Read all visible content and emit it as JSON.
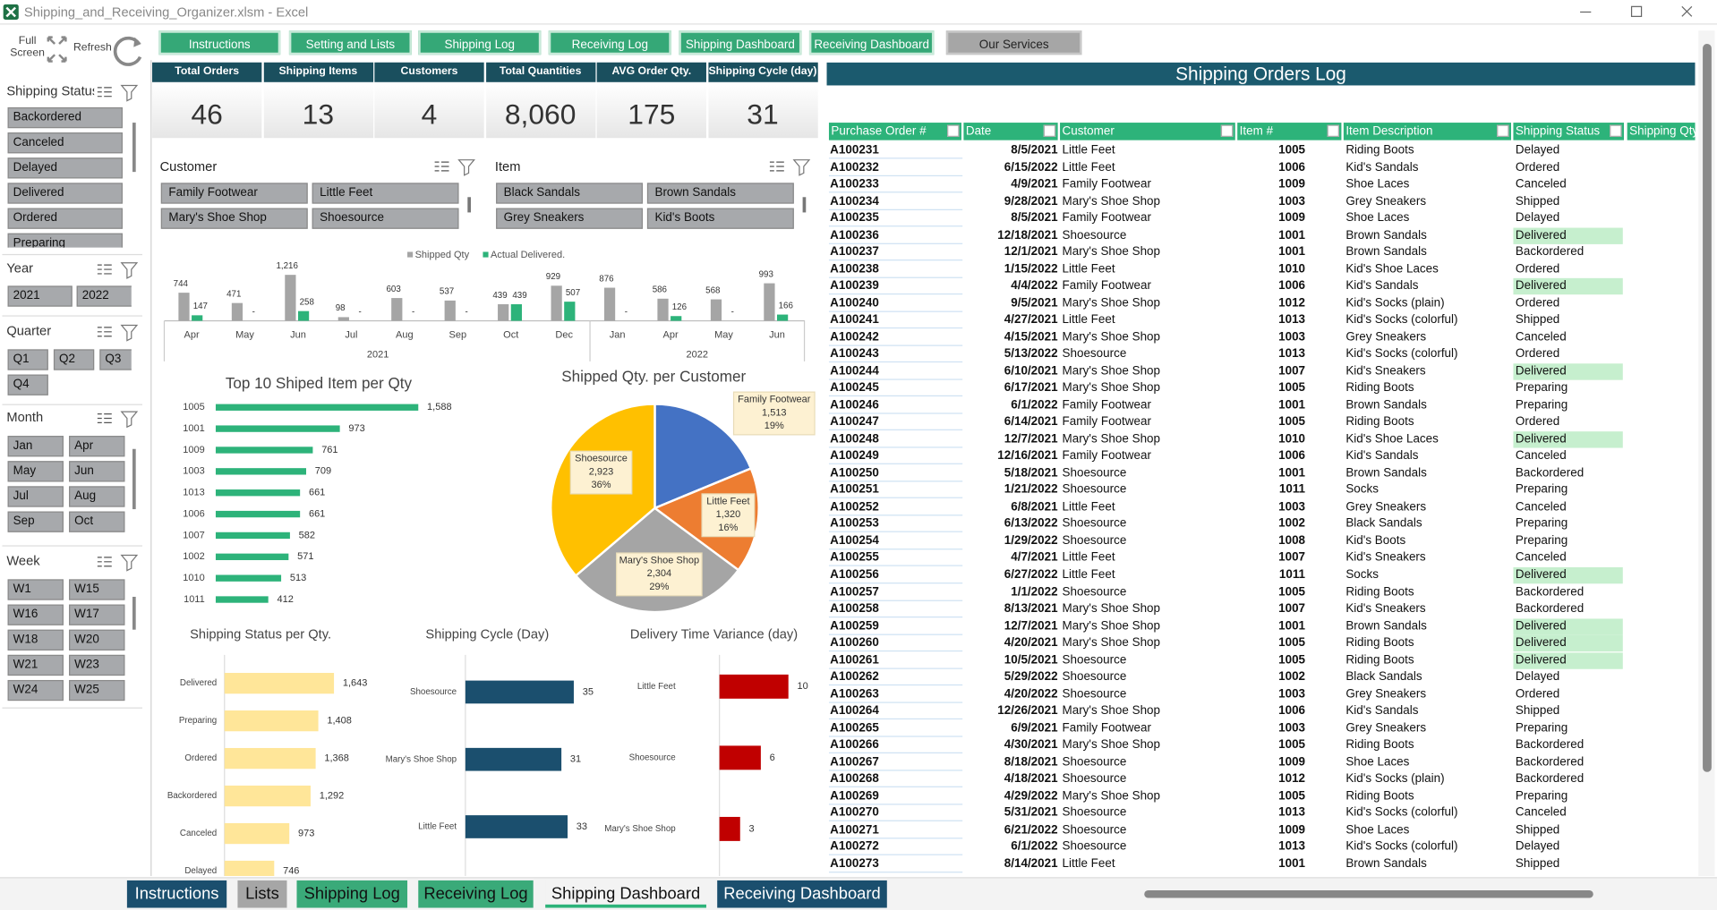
{
  "title_bar": "Shipping_and_Receiving_Organizer.xlsm  -  Excel",
  "nav": [
    "Instructions",
    "Setting and Lists",
    "Shipping Log",
    "Receiving Log",
    "Shipping Dashboard",
    "Receiving Dashboard",
    "Our Services"
  ],
  "toolbar": {
    "full_screen": "Full Screen",
    "refresh": "Refresh"
  },
  "slicers": [
    {
      "title": "Shipping Status",
      "items": [
        "Backordered",
        "Canceled",
        "Delayed",
        "Delivered",
        "Ordered",
        "Preparing"
      ]
    },
    {
      "title": "Year",
      "items": [
        "2021",
        "2022"
      ]
    },
    {
      "title": "Quarter",
      "items": [
        "Q1",
        "Q2",
        "Q3",
        "Q4"
      ]
    },
    {
      "title": "Month",
      "items": [
        "Jan",
        "Apr",
        "May",
        "Jun",
        "Jul",
        "Aug",
        "Sep",
        "Oct"
      ]
    },
    {
      "title": "Week",
      "items": [
        "W1",
        "W15",
        "W16",
        "W17",
        "W18",
        "W20",
        "W21",
        "W23",
        "W24",
        "W25"
      ]
    }
  ],
  "kpis": [
    {
      "label": "Total Orders",
      "value": "46"
    },
    {
      "label": "Shipping Items",
      "value": "13"
    },
    {
      "label": "Customers",
      "value": "4"
    },
    {
      "label": "Total Quantities",
      "value": "8,060"
    },
    {
      "label": "AVG Order Qty.",
      "value": "175"
    },
    {
      "label": "Shipping Cycle (day)",
      "value": "31"
    }
  ],
  "filters": [
    {
      "title": "Customer",
      "items": [
        "Family Footwear",
        "Little Feet",
        "Mary's Shoe Shop",
        "Shoesource"
      ]
    },
    {
      "title": "Item",
      "items": [
        "Black Sandals",
        "Brown Sandals",
        "Grey Sneakers",
        "Kid's Boots"
      ]
    }
  ],
  "charts": [
    {
      "type": "column",
      "groups": [
        {
          "label": "2021",
          "categories": [
            "Apr",
            "May",
            "Jun",
            "Jul",
            "Aug",
            "Sep",
            "Oct",
            "Dec"
          ]
        },
        {
          "label": "2022",
          "categories": [
            "Jan",
            "Apr",
            "May",
            "Jun"
          ]
        }
      ],
      "series": [
        {
          "name": "Shipped Qty",
          "color": "#a5a5a5",
          "values": [
            744,
            471,
            1216,
            98,
            603,
            537,
            439,
            929,
            876,
            586,
            568,
            993
          ],
          "value_labels": [
            "744",
            "471",
            "1,216",
            "98",
            "603",
            "537",
            "439",
            "929",
            "876",
            "586",
            "568",
            "993"
          ]
        },
        {
          "name": "Actual Delivered.",
          "color": "#2db37a",
          "values": [
            147,
            0,
            258,
            0,
            0,
            0,
            439,
            507,
            0,
            126,
            0,
            166
          ],
          "value_labels": [
            "147",
            "-",
            "258",
            "-",
            "-",
            "-",
            "439",
            "507",
            "-",
            "126",
            "-",
            "166"
          ]
        }
      ]
    },
    {
      "type": "hbar",
      "title": "Top 10 Shiped Item per Qty",
      "color": "#2db37a",
      "categories": [
        "1005",
        "1001",
        "1009",
        "1003",
        "1013",
        "1006",
        "1007",
        "1002",
        "1010",
        "1011"
      ],
      "values": [
        1588,
        973,
        761,
        709,
        661,
        661,
        582,
        571,
        513,
        412
      ],
      "value_labels": [
        "1,588",
        "973",
        "761",
        "709",
        "661",
        "661",
        "582",
        "571",
        "513",
        "412"
      ]
    },
    {
      "type": "pie",
      "title": "Shipped Qty. per Customer",
      "categories": [
        "Family Footwear",
        "Little Feet",
        "Mary's Shoe Shop",
        "Shoesource"
      ],
      "values": [
        1513,
        1320,
        2304,
        2923
      ],
      "value_labels": [
        "1,513",
        "1,320",
        "2,304",
        "2,923"
      ],
      "percents": [
        19,
        16,
        29,
        36
      ],
      "percent_labels": [
        "19%",
        "16%",
        "29%",
        "36%"
      ],
      "colors": [
        "#4472c4",
        "#ed7d31",
        "#a5a5a5",
        "#ffc000"
      ]
    },
    {
      "type": "hbar",
      "title": "Shipping Status per Qty.",
      "color": "#ffe699",
      "categories": [
        "Delivered",
        "Preparing",
        "Ordered",
        "Backordered",
        "Canceled",
        "Delayed"
      ],
      "values": [
        1643,
        1408,
        1368,
        1292,
        973,
        746
      ],
      "value_labels": [
        "1,643",
        "1,408",
        "1,368",
        "1,292",
        "973",
        "746"
      ]
    },
    {
      "type": "hbar",
      "title": "Shipping Cycle (Day)",
      "color": "#1b4f6e",
      "categories": [
        "Shoesource",
        "Mary's Shoe Shop",
        "Little Feet"
      ],
      "values": [
        35,
        31,
        33
      ]
    },
    {
      "type": "hbar",
      "title": "Delivery Time Variance (day)",
      "color": "#c00000",
      "categories": [
        "Little Feet",
        "Shoesource",
        "Mary's Shoe Shop"
      ],
      "values": [
        10,
        6,
        3
      ]
    }
  ],
  "table": {
    "title": "Shipping Orders Log",
    "columns": [
      "Purchase Order #",
      "Date",
      "Customer",
      "Item #",
      "Item Description",
      "Shipping Status",
      "Shipping Qty"
    ],
    "rows": [
      [
        "A100231",
        "8/5/2021",
        "Little Feet",
        "1005",
        "Riding Boots",
        "Delayed"
      ],
      [
        "A100232",
        "6/15/2022",
        "Little Feet",
        "1006",
        "Kid's Sandals",
        "Ordered"
      ],
      [
        "A100233",
        "4/9/2021",
        "Family Footwear",
        "1009",
        "Shoe Laces",
        "Canceled"
      ],
      [
        "A100234",
        "9/28/2021",
        "Mary's Shoe Shop",
        "1003",
        "Grey Sneakers",
        "Shipped"
      ],
      [
        "A100235",
        "8/5/2021",
        "Family Footwear",
        "1009",
        "Shoe Laces",
        "Delayed"
      ],
      [
        "A100236",
        "12/18/2021",
        "Shoesource",
        "1001",
        "Brown Sandals",
        "Delivered"
      ],
      [
        "A100237",
        "12/1/2021",
        "Mary's Shoe Shop",
        "1001",
        "Brown Sandals",
        "Backordered"
      ],
      [
        "A100238",
        "1/15/2022",
        "Little Feet",
        "1010",
        "Kid's Shoe Laces",
        "Ordered"
      ],
      [
        "A100239",
        "4/4/2022",
        "Family Footwear",
        "1006",
        "Kid's Sandals",
        "Delivered"
      ],
      [
        "A100240",
        "9/5/2021",
        "Mary's Shoe Shop",
        "1012",
        "Kid's Socks (plain)",
        "Ordered"
      ],
      [
        "A100241",
        "4/27/2021",
        "Little Feet",
        "1013",
        "Kid's Socks (colorful)",
        "Shipped"
      ],
      [
        "A100242",
        "4/15/2021",
        "Mary's Shoe Shop",
        "1003",
        "Grey Sneakers",
        "Canceled"
      ],
      [
        "A100243",
        "5/13/2022",
        "Shoesource",
        "1013",
        "Kid's Socks (colorful)",
        "Ordered"
      ],
      [
        "A100244",
        "6/10/2021",
        "Mary's Shoe Shop",
        "1007",
        "Kid's Sneakers",
        "Delivered"
      ],
      [
        "A100245",
        "6/17/2021",
        "Mary's Shoe Shop",
        "1005",
        "Riding Boots",
        "Preparing"
      ],
      [
        "A100246",
        "6/1/2022",
        "Family Footwear",
        "1001",
        "Brown Sandals",
        "Preparing"
      ],
      [
        "A100247",
        "6/14/2021",
        "Family Footwear",
        "1005",
        "Riding Boots",
        "Ordered"
      ],
      [
        "A100248",
        "12/7/2021",
        "Mary's Shoe Shop",
        "1010",
        "Kid's Shoe Laces",
        "Delivered"
      ],
      [
        "A100249",
        "12/16/2021",
        "Family Footwear",
        "1006",
        "Kid's Sandals",
        "Canceled"
      ],
      [
        "A100250",
        "5/18/2021",
        "Shoesource",
        "1001",
        "Brown Sandals",
        "Backordered"
      ],
      [
        "A100251",
        "1/21/2022",
        "Shoesource",
        "1011",
        "Socks",
        "Preparing"
      ],
      [
        "A100252",
        "6/8/2021",
        "Little Feet",
        "1003",
        "Grey Sneakers",
        "Canceled"
      ],
      [
        "A100253",
        "6/13/2022",
        "Shoesource",
        "1002",
        "Black Sandals",
        "Preparing"
      ],
      [
        "A100254",
        "1/29/2022",
        "Shoesource",
        "1008",
        "Kid's Boots",
        "Preparing"
      ],
      [
        "A100255",
        "4/7/2021",
        "Little Feet",
        "1007",
        "Kid's Sneakers",
        "Canceled"
      ],
      [
        "A100256",
        "6/27/2022",
        "Little Feet",
        "1011",
        "Socks",
        "Delivered"
      ],
      [
        "A100257",
        "1/1/2022",
        "Shoesource",
        "1005",
        "Riding Boots",
        "Backordered"
      ],
      [
        "A100258",
        "8/13/2021",
        "Mary's Shoe Shop",
        "1007",
        "Kid's Sneakers",
        "Backordered"
      ],
      [
        "A100259",
        "12/7/2021",
        "Mary's Shoe Shop",
        "1001",
        "Brown Sandals",
        "Delivered"
      ],
      [
        "A100260",
        "4/20/2021",
        "Mary's Shoe Shop",
        "1005",
        "Riding Boots",
        "Delivered"
      ],
      [
        "A100261",
        "10/5/2021",
        "Shoesource",
        "1005",
        "Riding Boots",
        "Delivered"
      ],
      [
        "A100262",
        "5/29/2022",
        "Shoesource",
        "1002",
        "Black Sandals",
        "Delayed"
      ],
      [
        "A100263",
        "4/20/2022",
        "Shoesource",
        "1003",
        "Grey Sneakers",
        "Ordered"
      ],
      [
        "A100264",
        "12/26/2021",
        "Mary's Shoe Shop",
        "1006",
        "Kid's Sandals",
        "Shipped"
      ],
      [
        "A100265",
        "6/9/2021",
        "Family Footwear",
        "1003",
        "Grey Sneakers",
        "Preparing"
      ],
      [
        "A100266",
        "4/30/2021",
        "Mary's Shoe Shop",
        "1005",
        "Riding Boots",
        "Backordered"
      ],
      [
        "A100267",
        "8/18/2021",
        "Shoesource",
        "1009",
        "Shoe Laces",
        "Backordered"
      ],
      [
        "A100268",
        "4/18/2021",
        "Shoesource",
        "1012",
        "Kid's Socks (plain)",
        "Backordered"
      ],
      [
        "A100269",
        "4/29/2022",
        "Mary's Shoe Shop",
        "1005",
        "Riding Boots",
        "Preparing"
      ],
      [
        "A100270",
        "5/31/2021",
        "Shoesource",
        "1013",
        "Kid's Socks (colorful)",
        "Canceled"
      ],
      [
        "A100271",
        "6/21/2022",
        "Shoesource",
        "1009",
        "Shoe Laces",
        "Shipped"
      ],
      [
        "A100272",
        "6/1/2022",
        "Shoesource",
        "1013",
        "Kid's Socks (colorful)",
        "Delayed"
      ],
      [
        "A100273",
        "8/14/2021",
        "Little Feet",
        "1001",
        "Brown Sandals",
        "Shipped"
      ]
    ]
  },
  "sheet_tabs": [
    "Instructions",
    "Lists",
    "Shipping Log",
    "Receiving Log",
    "Shipping Dashboard",
    "Receiving Dashboard"
  ]
}
